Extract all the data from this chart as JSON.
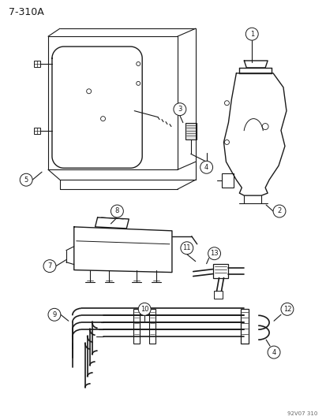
{
  "title": "7-310A",
  "watermark": "92V07 310",
  "bg_color": "#ffffff",
  "line_color": "#1a1a1a",
  "fig_width": 4.14,
  "fig_height": 5.33,
  "dpi": 100
}
